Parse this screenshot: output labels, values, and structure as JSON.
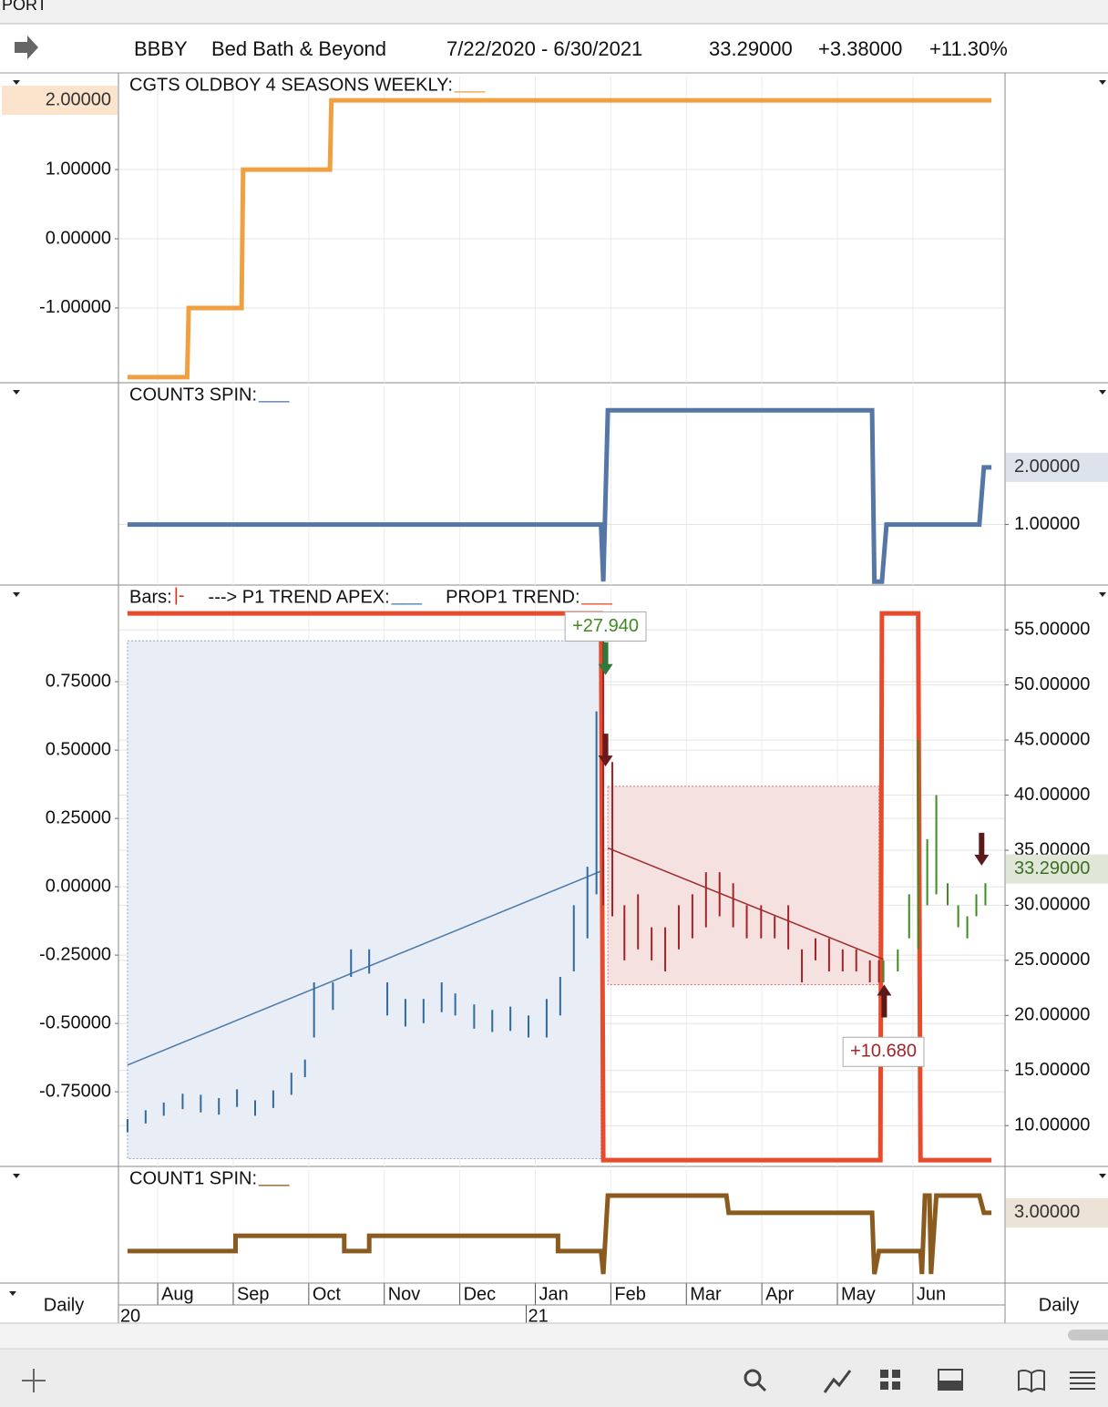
{
  "header": {
    "tab": "PORT",
    "symbol": "BBBY",
    "company": "Bed Bath & Beyond",
    "range": "7/22/2020 - 6/30/2021",
    "last": "33.29000",
    "change": "+3.38000",
    "change_pct": "+11.30%"
  },
  "footer": {
    "left_period": "Daily",
    "right_period": "Daily"
  },
  "time_axis": {
    "xlim": [
      0.48,
      12.22
    ],
    "xticks": [
      {
        "value": 1,
        "label": "Aug"
      },
      {
        "value": 2,
        "label": "Sep"
      },
      {
        "value": 3,
        "label": "Oct"
      },
      {
        "value": 4,
        "label": "Nov"
      },
      {
        "value": 5,
        "label": "Dec"
      },
      {
        "value": 6,
        "label": "Jan"
      },
      {
        "value": 7,
        "label": "Feb"
      },
      {
        "value": 8,
        "label": "Mar"
      },
      {
        "value": 9,
        "label": "Apr"
      },
      {
        "value": 10,
        "label": "May"
      },
      {
        "value": 11,
        "label": "Jun"
      }
    ],
    "year_ticks": [
      {
        "value": 0.6,
        "label": "20"
      },
      {
        "value": 6.0,
        "label": "21"
      }
    ]
  },
  "chart_data": [
    {
      "type": "line",
      "title": "CGTS OLDBOY 4 SEASONS WEEKLY:",
      "title_suffix": "___",
      "suffix_color": "#f0a040",
      "yaxis_side": "left",
      "grid": true,
      "ylim": [
        -2.08,
        2.37
      ],
      "yticks": [
        {
          "value": 1,
          "label": "1.00000"
        },
        {
          "value": 0,
          "label": "0.00000"
        },
        {
          "value": -1,
          "label": "-1.00000"
        }
      ],
      "current": {
        "value": 2,
        "label": "2.00000"
      },
      "current_color": "#fbe3cc",
      "series": [
        {
          "color": "#f0a040",
          "x": [
            0.6,
            1.39,
            1.41,
            2.11,
            2.13,
            3.28,
            3.3,
            12.04
          ],
          "values": [
            -2,
            -2,
            -1,
            -1,
            1,
            1,
            2,
            2
          ]
        }
      ]
    },
    {
      "type": "line",
      "title": "COUNT3 SPIN:",
      "title_suffix": "___",
      "suffix_color": "#5477a6",
      "yaxis_side": "right",
      "grid": true,
      "ylim": [
        -0.06,
        3.45
      ],
      "yticks": [
        {
          "value": 1,
          "label": "1.00000"
        }
      ],
      "current": {
        "value": 2,
        "label": "2.00000"
      },
      "current_color": "#dde3ec",
      "series": [
        {
          "color": "#5477a6",
          "x": [
            0.6,
            6.87,
            6.9,
            6.96,
            10.46,
            10.49,
            10.59,
            10.65,
            11.88,
            11.94,
            12.04
          ],
          "values": [
            1,
            1,
            0,
            3,
            3,
            0,
            0,
            1,
            1,
            2,
            2
          ]
        }
      ]
    },
    {
      "type": "bar",
      "yaxis_side": "left",
      "grid": true,
      "legend": [
        {
          "label": "Bars:",
          "swatch": "|-",
          "color": "#d03020"
        },
        {
          "label": "---> P1 TREND APEX:",
          "swatch": "___",
          "color": "#4a7aa8"
        },
        {
          "label": "PROP1 TREND:",
          "swatch": "___",
          "color": "#e84a2c"
        }
      ],
      "ylim": [
        -1.023,
        1.097
      ],
      "yticks": [
        {
          "value": 0.75,
          "label": "0.75000"
        },
        {
          "value": 0.5,
          "label": "0.50000"
        },
        {
          "value": 0.25,
          "label": "0.25000"
        },
        {
          "value": 0,
          "label": "0.00000"
        },
        {
          "value": -0.25,
          "label": "-0.25000"
        },
        {
          "value": -0.5,
          "label": "-0.50000"
        },
        {
          "value": -0.75,
          "label": "-0.75000"
        }
      ],
      "y2lim": [
        6.3,
        58.9
      ],
      "y2ticks": [
        {
          "value": 55,
          "label": "55.00000"
        },
        {
          "value": 50,
          "label": "50.00000"
        },
        {
          "value": 45,
          "label": "45.00000"
        },
        {
          "value": 40,
          "label": "40.00000"
        },
        {
          "value": 35,
          "label": "35.00000"
        },
        {
          "value": 30,
          "label": "30.00000"
        },
        {
          "value": 25,
          "label": "25.00000"
        },
        {
          "value": 20,
          "label": "20.00000"
        },
        {
          "value": 15,
          "label": "15.00000"
        },
        {
          "value": 10,
          "label": "10.00000"
        }
      ],
      "current": {
        "value": 33.29,
        "label": "33.29000"
      },
      "current_color": "#dfe8d8",
      "current_text_color": "#3d6e24",
      "regions": [
        {
          "x": [
            0.6,
            6.87
          ],
          "y": [
            7.0,
            54.0
          ],
          "color": "#e9edf5",
          "edge": "#8fa5d0"
        },
        {
          "x": [
            6.96,
            10.55
          ],
          "y": [
            22.8,
            40.8
          ],
          "color": "#f6e1e1",
          "edge": "#e07070"
        }
      ],
      "series": [
        {
          "axis": "y",
          "color": "#e84a2c",
          "width": 5,
          "x": [
            0.6,
            6.87,
            6.9,
            10.57,
            10.59,
            11.07,
            11.1,
            12.04
          ],
          "values": [
            1,
            1,
            -1,
            -1,
            1,
            1,
            -1,
            -1
          ]
        },
        {
          "axis": "y2",
          "color": "#4a7aa8",
          "width": 1.5,
          "x": [
            0.6,
            6.87
          ],
          "values": [
            15.5,
            33.1
          ]
        },
        {
          "axis": "y2",
          "color": "#a02a2a",
          "width": 1.5,
          "x": [
            6.96,
            10.61
          ],
          "values": [
            35.2,
            25.1
          ]
        },
        {
          "axis": "y2",
          "color": "#2f6aa0",
          "x": [
            0.6,
            0.84,
            1.08,
            1.33,
            1.57,
            1.81,
            2.05,
            2.29,
            2.53,
            2.77,
            2.95,
            3.07,
            3.32,
            3.56,
            3.8,
            4.04,
            4.28,
            4.52,
            4.76,
            4.94,
            5.19,
            5.43,
            5.67,
            5.91,
            6.15,
            6.33,
            6.51,
            6.69,
            6.81
          ],
          "high": [
            10.6,
            11.4,
            12.1,
            12.9,
            12.8,
            12.5,
            13.3,
            12.3,
            13.2,
            14.8,
            16.0,
            23.0,
            23.0,
            26.0,
            26.0,
            23.0,
            21.5,
            21.5,
            23.0,
            22.0,
            21.0,
            20.5,
            20.8,
            20.0,
            21.5,
            23.5,
            30.0,
            33.5,
            47.6
          ],
          "low": [
            9.4,
            10.2,
            10.9,
            11.5,
            11.2,
            11.0,
            11.7,
            10.9,
            11.6,
            12.8,
            14.4,
            18.0,
            20.5,
            23.5,
            23.8,
            20.0,
            19.0,
            19.3,
            20.3,
            20.0,
            18.8,
            18.5,
            18.6,
            18.0,
            18.0,
            20.0,
            24.0,
            27.0,
            31.0
          ]
        },
        {
          "axis": "y2",
          "color": "#a0252a",
          "x": [
            6.9,
            7.02,
            7.18,
            7.36,
            7.54,
            7.72,
            7.9,
            8.08,
            8.26,
            8.44,
            8.62,
            8.8,
            8.99,
            9.17,
            9.35,
            9.53,
            9.71,
            9.89,
            10.07,
            10.25,
            10.43,
            10.55
          ],
          "high": [
            55,
            43,
            30,
            31,
            28,
            28,
            30,
            31,
            33,
            33,
            32,
            30,
            30,
            29,
            30,
            26,
            27,
            27,
            26,
            26,
            25,
            25
          ],
          "low": [
            30,
            29,
            25,
            26,
            25,
            24,
            26,
            27,
            28,
            29,
            28,
            27,
            27,
            27,
            26,
            23,
            25,
            24,
            24,
            24,
            23,
            23
          ]
        },
        {
          "axis": "y2",
          "color": "#3f8a22",
          "x": [
            10.61,
            10.8,
            10.95,
            11.07,
            11.19,
            11.31,
            11.46,
            11.6,
            11.72,
            11.84,
            11.96
          ],
          "high": [
            25,
            26,
            31,
            45,
            36,
            40,
            32,
            30,
            29,
            31,
            32
          ],
          "low": [
            23,
            24,
            27,
            26,
            30,
            31,
            30,
            28,
            27,
            29,
            30
          ]
        }
      ],
      "arrows": [
        {
          "x": 6.93,
          "y": 50.9,
          "dir": "down",
          "color": "#2f7a3a"
        },
        {
          "x": 6.93,
          "y": 42.6,
          "dir": "down",
          "color": "#6a1a1a"
        },
        {
          "x": 10.62,
          "y": 22.8,
          "dir": "up",
          "color": "#5a1a1a"
        },
        {
          "x": 11.91,
          "y": 33.6,
          "dir": "down",
          "color": "#5a1a1a"
        }
      ],
      "annotations": [
        {
          "text": "+27.940",
          "x": 6.93,
          "y": 55.3,
          "color": "#3f8a22"
        },
        {
          "text": "+10.680",
          "x": 10.61,
          "y": 16.7,
          "color": "#a0252a"
        }
      ]
    },
    {
      "type": "line",
      "title": "COUNT1 SPIN:",
      "title_suffix": "___",
      "suffix_color": "#8b5a1e",
      "yaxis_side": "right",
      "grid": true,
      "ylim": [
        -0.67,
        5.33
      ],
      "yticks": [],
      "current": {
        "value": 3,
        "label": "3.00000"
      },
      "current_color": "#ece2d6",
      "series": [
        {
          "color": "#8b5a1e",
          "x": [
            0.6,
            2.03,
            2.03,
            3.47,
            3.47,
            3.8,
            3.8,
            6.3,
            6.3,
            6.87,
            6.9,
            6.96,
            8.53,
            8.56,
            10.46,
            10.49,
            10.55,
            11.1,
            11.12,
            11.16,
            11.22,
            11.24,
            11.31,
            11.88,
            11.94,
            12.04
          ],
          "values": [
            1,
            1,
            1.8,
            1.8,
            1,
            1,
            1.8,
            1.8,
            1,
            1,
            -0.2,
            3.9,
            3.9,
            3,
            3,
            -0.2,
            1,
            1,
            -0.2,
            3.9,
            3.9,
            -0.2,
            3.9,
            3.9,
            3,
            3
          ]
        }
      ]
    }
  ]
}
